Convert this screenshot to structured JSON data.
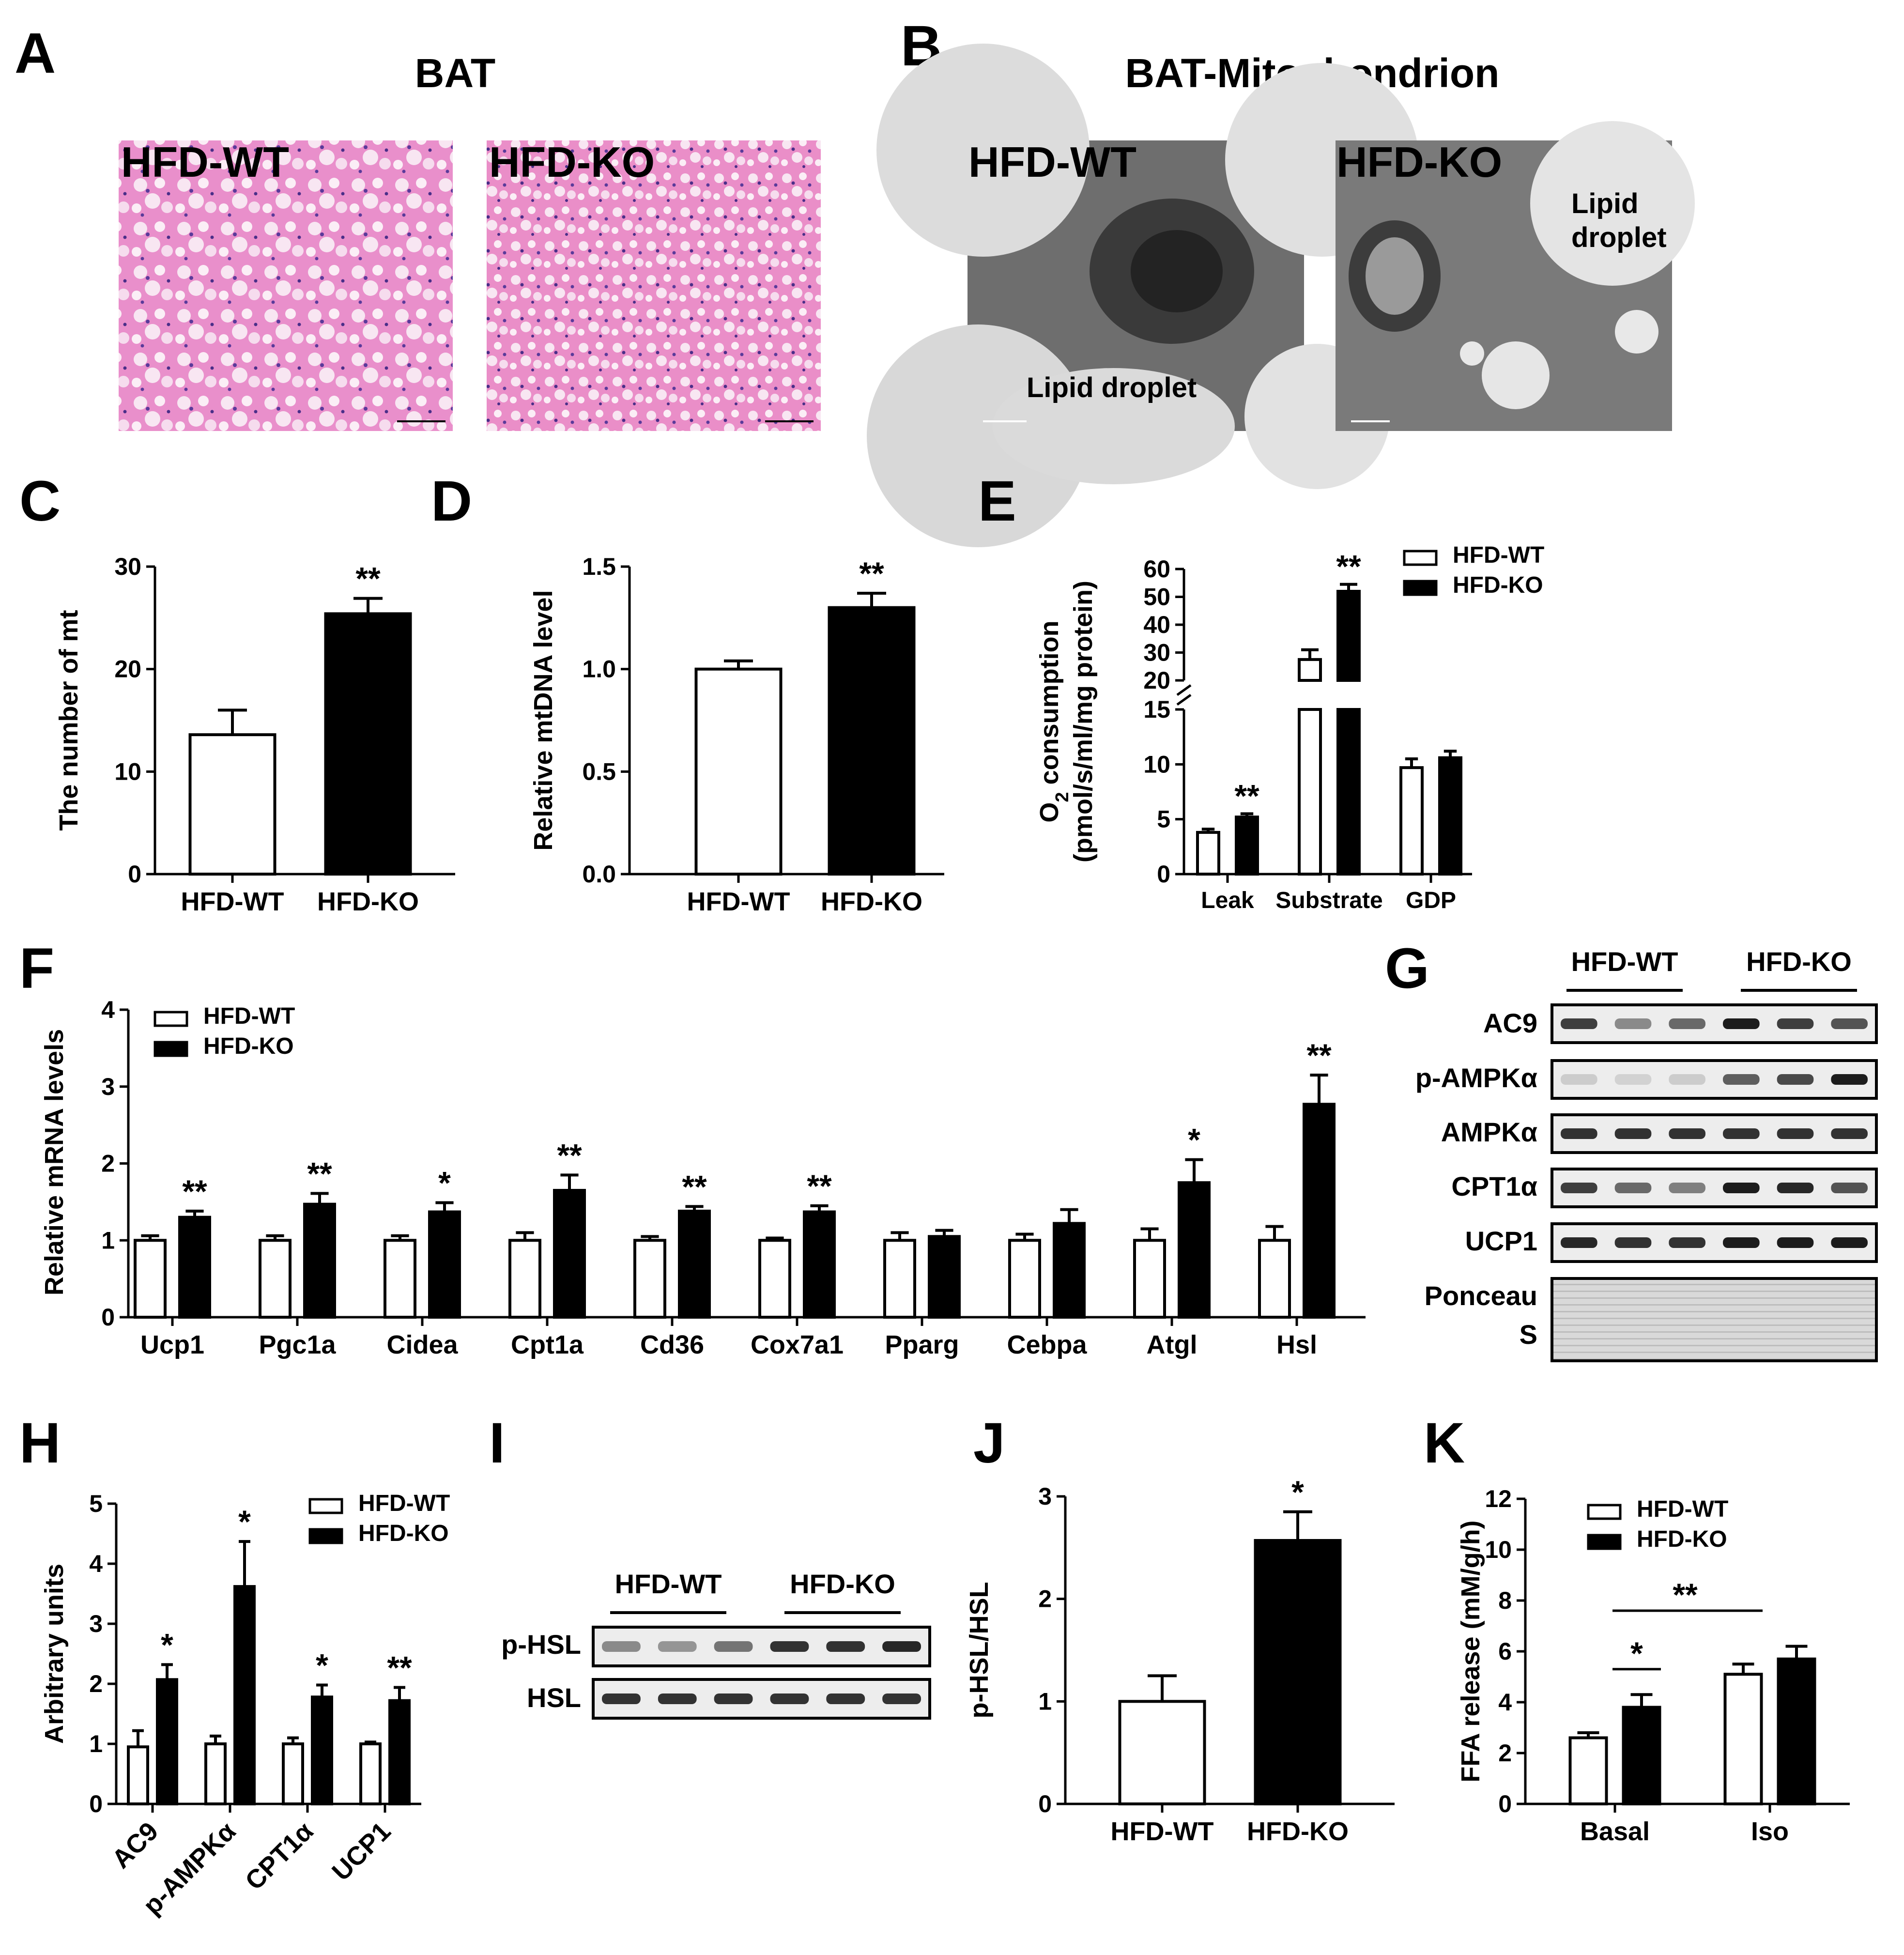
{
  "panels": {
    "A": {
      "letter": "A",
      "title": "BAT",
      "images": [
        "HFD-WT",
        "HFD-KO"
      ]
    },
    "B": {
      "letter": "B",
      "title": "BAT-Mitochondrion",
      "images": [
        "HFD-WT",
        "HFD-KO"
      ],
      "annotations": {
        "wt": "Lipid droplet",
        "ko_line1": "Lipid",
        "ko_line2": "droplet"
      }
    },
    "C": {
      "letter": "C"
    },
    "D": {
      "letter": "D"
    },
    "E": {
      "letter": "E"
    },
    "F": {
      "letter": "F"
    },
    "G": {
      "letter": "G",
      "groups": [
        "HFD-WT",
        "HFD-KO"
      ],
      "rows": [
        "AC9",
        "p-AMPKα",
        "AMPKα",
        "CPT1α",
        "UCP1"
      ],
      "ponceau_line1": "Ponceau",
      "ponceau_line2": "S"
    },
    "H": {
      "letter": "H"
    },
    "I": {
      "letter": "I",
      "groups": [
        "HFD-WT",
        "HFD-KO"
      ],
      "rows": [
        "p-HSL",
        "HSL"
      ]
    },
    "J": {
      "letter": "J"
    },
    "K": {
      "letter": "K"
    }
  },
  "chart_data": [
    {
      "panel": "C",
      "type": "bar",
      "categories": [
        "HFD-WT",
        "HFD-KO"
      ],
      "series": [
        {
          "values": [
            13.6,
            25.4
          ],
          "errors": [
            2.4,
            1.5
          ]
        }
      ],
      "fills": [
        "#ffffff",
        "#000000"
      ],
      "ylabel": "The number of mt",
      "ylim": [
        0,
        30
      ],
      "yticks": [
        0,
        10,
        20,
        30
      ],
      "significance": [
        "",
        "**"
      ]
    },
    {
      "panel": "D",
      "type": "bar",
      "categories": [
        "HFD-WT",
        "HFD-KO"
      ],
      "series": [
        {
          "values": [
            1.0,
            1.3
          ],
          "errors": [
            0.04,
            0.07
          ]
        }
      ],
      "fills": [
        "#ffffff",
        "#000000"
      ],
      "ylabel": "Relative mtDNA level",
      "ylim": [
        0,
        1.5
      ],
      "yticks": [
        "0.0",
        "0.5",
        "1.0",
        "1.5"
      ],
      "significance": [
        "",
        "**"
      ]
    },
    {
      "panel": "E",
      "type": "bar",
      "categories": [
        "Leak",
        "Substrate",
        "GDP"
      ],
      "series": [
        {
          "name": "HFD-WT",
          "color": "#ffffff",
          "values": [
            3.8,
            27.5,
            9.7
          ],
          "errors": [
            0.3,
            3.5,
            0.8
          ]
        },
        {
          "name": "HFD-KO",
          "color": "#000000",
          "values": [
            5.2,
            52.0,
            10.6
          ],
          "errors": [
            0.3,
            2.5,
            0.6
          ]
        }
      ],
      "ylabel_main": "O",
      "ylabel_sub": "2",
      "ylabel_rest": " consumption",
      "ylabel_line2": "(pmol/s/ml/mg protein)",
      "ylim": [
        0,
        60
      ],
      "axis_break": [
        15,
        20
      ],
      "yticks_lower": [
        0,
        5,
        10,
        15
      ],
      "yticks_upper": [
        20,
        30,
        40,
        50,
        60
      ],
      "significance": [
        [
          "",
          "**"
        ],
        [
          "",
          "**"
        ],
        [
          "",
          ""
        ]
      ],
      "legend": "top-right"
    },
    {
      "panel": "F",
      "type": "bar",
      "categories": [
        "Ucp1",
        "Pgc1a",
        "Cidea",
        "Cpt1a",
        "Cd36",
        "Cox7a1",
        "Pparg",
        "Cebpa",
        "Atgl",
        "Hsl"
      ],
      "series": [
        {
          "name": "HFD-WT",
          "color": "#ffffff",
          "values": [
            1.0,
            1.0,
            1.0,
            1.0,
            1.0,
            1.0,
            1.0,
            1.0,
            1.0,
            1.0
          ],
          "errors": [
            0.06,
            0.06,
            0.06,
            0.1,
            0.05,
            0.03,
            0.1,
            0.08,
            0.15,
            0.18
          ]
        },
        {
          "name": "HFD-KO",
          "color": "#000000",
          "values": [
            1.3,
            1.47,
            1.37,
            1.65,
            1.38,
            1.37,
            1.05,
            1.22,
            1.75,
            2.77
          ],
          "errors": [
            0.08,
            0.14,
            0.12,
            0.2,
            0.06,
            0.08,
            0.08,
            0.18,
            0.3,
            0.38
          ]
        }
      ],
      "ylabel": "Relative mRNA levels",
      "ylim": [
        0,
        4
      ],
      "yticks": [
        0,
        1,
        2,
        3,
        4
      ],
      "significance": [
        "**",
        "**",
        "*",
        "**",
        "**",
        "**",
        "",
        "",
        "*",
        "**"
      ],
      "legend": "top-left"
    },
    {
      "panel": "H",
      "type": "bar",
      "categories": [
        "AC9",
        "p-AMPKα",
        "CPT1α",
        "UCP1"
      ],
      "series": [
        {
          "name": "HFD-WT",
          "color": "#ffffff",
          "values": [
            0.95,
            1.0,
            1.0,
            1.0
          ],
          "errors": [
            0.27,
            0.13,
            0.1,
            0.03
          ]
        },
        {
          "name": "HFD-KO",
          "color": "#000000",
          "values": [
            2.07,
            3.62,
            1.78,
            1.72
          ],
          "errors": [
            0.25,
            0.75,
            0.2,
            0.22
          ]
        }
      ],
      "ylabel": "Arbitrary units",
      "ylim": [
        0,
        5
      ],
      "yticks": [
        0,
        1,
        2,
        3,
        4,
        5
      ],
      "significance": [
        "*",
        "*",
        "*",
        "**"
      ],
      "legend": "top-right"
    },
    {
      "panel": "J",
      "type": "bar",
      "categories": [
        "HFD-WT",
        "HFD-KO"
      ],
      "series": [
        {
          "values": [
            1.0,
            2.57
          ],
          "errors": [
            0.25,
            0.28
          ]
        }
      ],
      "fills": [
        "#ffffff",
        "#000000"
      ],
      "ylabel": "p-HSL/HSL",
      "ylim": [
        0,
        3
      ],
      "yticks": [
        0,
        1,
        2,
        3
      ],
      "significance": [
        "",
        "*"
      ]
    },
    {
      "panel": "K",
      "type": "bar",
      "categories": [
        "Basal",
        "Iso"
      ],
      "series": [
        {
          "name": "HFD-WT",
          "color": "#ffffff",
          "values": [
            2.6,
            5.1
          ],
          "errors": [
            0.2,
            0.4
          ]
        },
        {
          "name": "HFD-KO",
          "color": "#000000",
          "values": [
            3.8,
            5.7
          ],
          "errors": [
            0.5,
            0.5
          ]
        }
      ],
      "ylabel": "FFA release (mM/g/h)",
      "ylim": [
        0,
        12
      ],
      "yticks": [
        0,
        2,
        4,
        6,
        8,
        10,
        12
      ],
      "brackets": [
        {
          "label": "*"
        },
        {
          "label": "**"
        }
      ],
      "legend": "top-right"
    }
  ]
}
